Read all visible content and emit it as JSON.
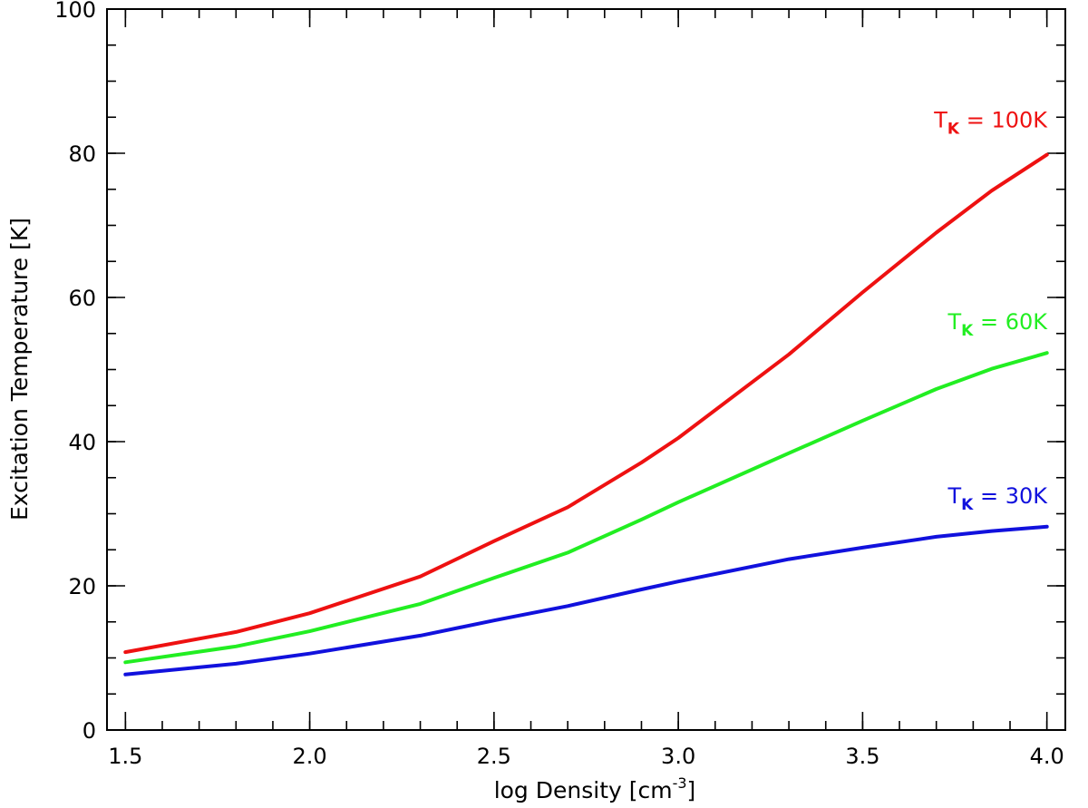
{
  "chart_data": {
    "type": "line",
    "title": "",
    "xlabel": "log Density [cm",
    "xlabel_sup": "-3",
    "xlabel_close": "]",
    "ylabel": "Excitation Temperature [K]",
    "xlim": [
      1.45,
      4.05
    ],
    "ylim": [
      0,
      100
    ],
    "x_ticks": [
      1.5,
      2.0,
      2.5,
      3.0,
      3.5,
      4.0
    ],
    "x_tick_labels": [
      "1.5",
      "2.0",
      "2.5",
      "3.0",
      "3.5",
      "4.0"
    ],
    "x_minor_step": 0.1,
    "y_ticks": [
      0,
      20,
      40,
      60,
      80,
      100
    ],
    "y_tick_labels": [
      "0",
      "20",
      "40",
      "60",
      "80",
      "100"
    ],
    "y_minor_step": 5,
    "grid": false,
    "x": [
      1.5,
      1.8,
      2.0,
      2.3,
      2.5,
      2.7,
      2.9,
      3.0,
      3.3,
      3.5,
      3.7,
      3.85,
      4.0
    ],
    "series": [
      {
        "name": "T_K = 100K",
        "label_main": "T",
        "label_sub": "K",
        "label_rest": " = 100K",
        "color": "#ee1111",
        "values": [
          10.8,
          13.6,
          16.2,
          21.3,
          26.2,
          30.9,
          37.1,
          40.5,
          52.1,
          60.7,
          69.0,
          74.8,
          79.8
        ]
      },
      {
        "name": "T_K = 60K",
        "label_main": "T",
        "label_sub": "K",
        "label_rest": " = 60K",
        "color": "#22ee22",
        "values": [
          9.4,
          11.6,
          13.7,
          17.5,
          21.1,
          24.6,
          29.2,
          31.6,
          38.4,
          42.9,
          47.3,
          50.1,
          52.3
        ]
      },
      {
        "name": "T_K = 30K",
        "label_main": "T",
        "label_sub": "K",
        "label_rest": " = 30K",
        "color": "#1111dd",
        "values": [
          7.7,
          9.2,
          10.6,
          13.1,
          15.2,
          17.2,
          19.5,
          20.6,
          23.7,
          25.3,
          26.8,
          27.6,
          28.2
        ]
      }
    ]
  }
}
